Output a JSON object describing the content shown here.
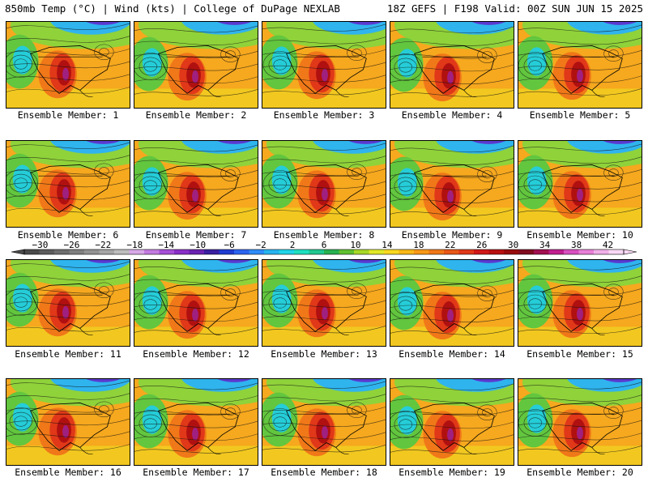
{
  "header": {
    "left_title": "850mb Temp (°C) | Wind (kts) | College of DuPage NEXLAB",
    "right_title": "18Z GEFS | F198 Valid: 00Z SUN JUN 15 2025"
  },
  "members": [
    {
      "label": "Ensemble Member: 1"
    },
    {
      "label": "Ensemble Member: 2"
    },
    {
      "label": "Ensemble Member: 3"
    },
    {
      "label": "Ensemble Member: 4"
    },
    {
      "label": "Ensemble Member: 5"
    },
    {
      "label": "Ensemble Member: 6"
    },
    {
      "label": "Ensemble Member: 7"
    },
    {
      "label": "Ensemble Member: 8"
    },
    {
      "label": "Ensemble Member: 9"
    },
    {
      "label": "Ensemble Member: 10"
    },
    {
      "label": "Ensemble Member: 11"
    },
    {
      "label": "Ensemble Member: 12"
    },
    {
      "label": "Ensemble Member: 13"
    },
    {
      "label": "Ensemble Member: 14"
    },
    {
      "label": "Ensemble Member: 15"
    },
    {
      "label": "Ensemble Member: 16"
    },
    {
      "label": "Ensemble Member: 17"
    },
    {
      "label": "Ensemble Member: 18"
    },
    {
      "label": "Ensemble Member: 19"
    },
    {
      "label": "Ensemble Member: 20"
    }
  ],
  "colorbar": {
    "ticks": [
      "-30",
      "-26",
      "-22",
      "-18",
      "-14",
      "-10",
      "-6",
      "-2",
      "2",
      "6",
      "10",
      "14",
      "18",
      "22",
      "26",
      "30",
      "34",
      "38",
      "42"
    ],
    "colors": [
      "#4a4a4a",
      "#5c5c5c",
      "#6e6e6e",
      "#808080",
      "#939393",
      "#a6a6a6",
      "#bdbdbd",
      "#d8a8e8",
      "#c27ae0",
      "#a64fd8",
      "#8a2fc8",
      "#6b22b0",
      "#3a1fa0",
      "#1f3cd0",
      "#2c64f0",
      "#2f8cf8",
      "#28b4f0",
      "#20d4e8",
      "#1ee0c0",
      "#20c890",
      "#28b050",
      "#60c030",
      "#a8d828",
      "#e0e828",
      "#f8d820",
      "#f8b818",
      "#f89818",
      "#f07818",
      "#e85818",
      "#e03818",
      "#d01818",
      "#b81010",
      "#980c0c",
      "#800c20",
      "#a01050",
      "#c02090",
      "#d850c0",
      "#e880d8",
      "#f0b0e8",
      "#f8d8f4"
    ]
  }
}
